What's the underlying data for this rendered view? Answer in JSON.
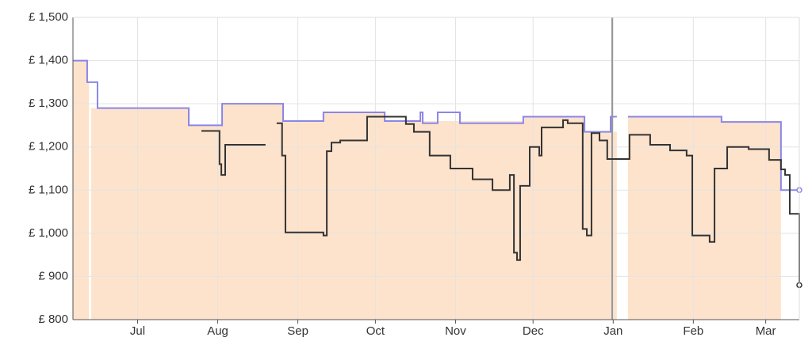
{
  "chart_data": {
    "type": "step",
    "xlim": [
      -25,
      256
    ],
    "xticks": [
      {
        "value": 0,
        "label": "Jul"
      },
      {
        "value": 31,
        "label": "Aug"
      },
      {
        "value": 62,
        "label": "Sep"
      },
      {
        "value": 92,
        "label": "Oct"
      },
      {
        "value": 123,
        "label": "Nov"
      },
      {
        "value": 153,
        "label": "Dec"
      },
      {
        "value": 184,
        "label": "Jan"
      },
      {
        "value": 215,
        "label": "Feb"
      },
      {
        "value": 243,
        "label": "Mar"
      }
    ],
    "ylim": [
      800,
      1500
    ],
    "yticks": [
      {
        "value": 800,
        "label": "£ 800"
      },
      {
        "value": 900,
        "label": "£ 900"
      },
      {
        "value": 1000,
        "label": "£ 1,000"
      },
      {
        "value": 1100,
        "label": "£ 1,100"
      },
      {
        "value": 1200,
        "label": "£ 1,200"
      },
      {
        "value": 1300,
        "label": "£ 1,300"
      },
      {
        "value": 1400,
        "label": "£ 1,400"
      },
      {
        "value": 1500,
        "label": "£ 1,500"
      }
    ],
    "grid": true,
    "series": [
      {
        "style": "area",
        "color": "#fde3cc",
        "x": [
          -25,
          -19.5,
          -18.8,
          -18.0,
          19.8,
          32.7,
          56.3,
          71.9,
          95.6,
          149.2,
          172.9,
          185.4,
          189.7,
          225.9,
          248.9
        ],
        "values": [
          1400,
          1350,
          null,
          1290,
          1250,
          1300,
          1260,
          1280,
          1260,
          1270,
          1235,
          null,
          1270,
          1258,
          1258
        ]
      },
      {
        "style": "line",
        "color": "#8a86e6",
        "x": [
          -25,
          -19.5,
          -15.5,
          19.8,
          32.7,
          56.3,
          71.9,
          95.6,
          109.4,
          110.3,
          116.1,
          124.7,
          149.2,
          172.9,
          183,
          185.4,
          189.7,
          225.9,
          248.9,
          256
        ],
        "values": [
          1400,
          1350,
          1290,
          1250,
          1300,
          1260,
          1280,
          1260,
          1280,
          1255,
          1280,
          1255,
          1270,
          1235,
          1270,
          null,
          1270,
          1258,
          1100,
          1100
        ]
      },
      {
        "style": "line",
        "color": "#333333",
        "x": [
          24.7,
          31.7,
          32.4,
          33.9,
          36.4,
          49.5,
          53.8,
          55.9,
          57.2,
          71.9,
          73.2,
          75,
          78.4,
          88.8,
          103.8,
          106.9,
          113,
          121,
          129.6,
          137.3,
          144,
          145.6,
          146.8,
          148,
          151.7,
          155.4,
          156.3,
          164.6,
          166.4,
          172.2,
          173.8,
          175.6,
          178.7,
          181.7,
          190.3,
          198.3,
          206,
          212.4,
          214.6,
          221.3,
          223.2,
          228.1,
          236.4,
          244.3,
          248.9,
          250.5,
          252.3,
          256
        ],
        "values": [
          1237,
          1160,
          1135,
          1205,
          1205,
          null,
          1255,
          1180,
          1002,
          995,
          1190,
          1210,
          1215,
          1270,
          1253,
          1235,
          1180,
          1150,
          1125,
          1100,
          1135,
          955,
          938,
          1110,
          1200,
          1180,
          1245,
          1262,
          1255,
          1010,
          995,
          1232,
          1215,
          1172,
          1228,
          1205,
          1192,
          1180,
          995,
          980,
          1150,
          1200,
          1195,
          1170,
          1148,
          1135,
          1045,
          880
        ]
      }
    ]
  }
}
